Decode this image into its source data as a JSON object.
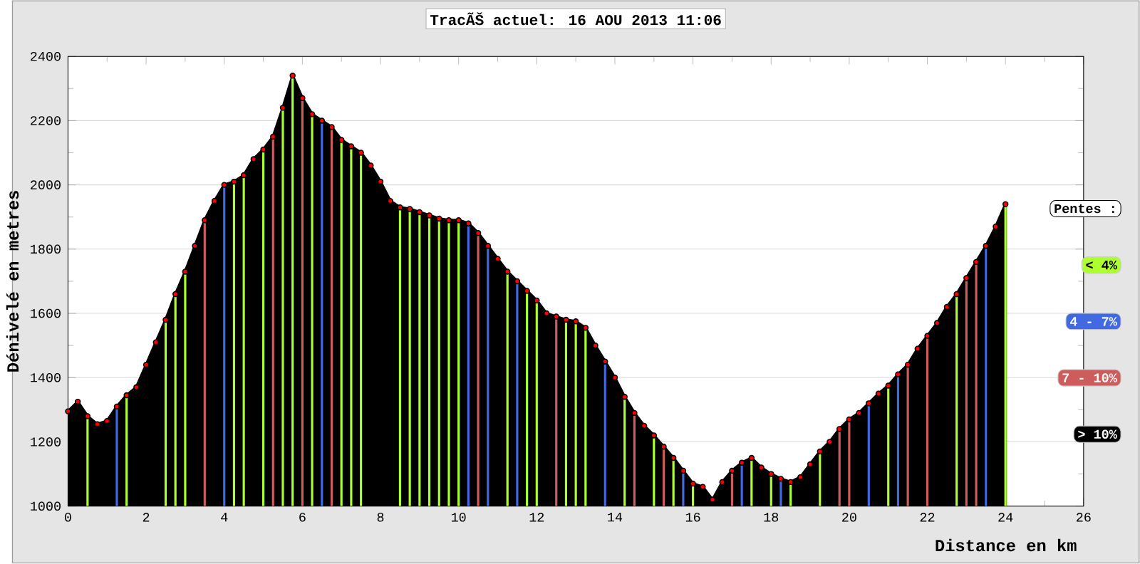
{
  "chart_data": {
    "type": "bar",
    "title": "TracÃŠ actuel: 16 AOU 2013 11:06",
    "xlabel": "Distance en km",
    "ylabel": "Dénivelé en metres",
    "legend_title": "Pentes :",
    "xlim": [
      0,
      26
    ],
    "ylim": [
      1000,
      2400
    ],
    "xticks": [
      0,
      2,
      4,
      6,
      8,
      10,
      12,
      14,
      16,
      18,
      20,
      22,
      24,
      26
    ],
    "yticks": [
      1000,
      1200,
      1400,
      1600,
      1800,
      2000,
      2200,
      2400
    ],
    "grid": "y",
    "legend": "right",
    "marker": "circle",
    "series": [
      {
        "name": "< 4%",
        "color": "#adff2f",
        "x": [
          0.5,
          1.5,
          2.5,
          2.75,
          3.0,
          4.25,
          4.5,
          5.0,
          5.5,
          5.75,
          6.25,
          7.0,
          7.25,
          7.5,
          8.5,
          8.75,
          9.0,
          9.25,
          9.5,
          9.75,
          10.0,
          11.25,
          11.75,
          12.0,
          12.75,
          13.0,
          13.25,
          14.25,
          15.0,
          15.5,
          16.0,
          17.5,
          18.0,
          18.5,
          19.25,
          21.0,
          22.75,
          24.0
        ],
        "values": [
          1280,
          1345,
          1580,
          1660,
          1730,
          2010,
          2030,
          2110,
          2240,
          2340,
          2220,
          2140,
          2120,
          2100,
          1930,
          1925,
          1915,
          1905,
          1895,
          1890,
          1890,
          1730,
          1670,
          1640,
          1580,
          1575,
          1555,
          1340,
          1220,
          1150,
          1070,
          1150,
          1100,
          1075,
          1170,
          1375,
          1660,
          1940
        ]
      },
      {
        "name": "4 - 7%",
        "color": "#4169e1",
        "x": [
          1.25,
          4.0,
          6.5,
          10.25,
          10.75,
          11.5,
          13.75,
          15.75,
          17.25,
          18.25,
          20.5,
          21.25,
          23.5
        ],
        "values": [
          1310,
          2000,
          2200,
          1880,
          1810,
          1700,
          1450,
          1110,
          1135,
          1085,
          1320,
          1410,
          1810
        ]
      },
      {
        "name": "7 - 10%",
        "color": "#cd5c5c",
        "x": [
          3.5,
          5.25,
          6.0,
          6.75,
          10.5,
          12.5,
          14.5,
          15.25,
          17.0,
          19.75,
          20.0,
          21.5,
          22.0,
          23.0,
          23.25
        ],
        "values": [
          1890,
          2150,
          2270,
          2180,
          1850,
          1590,
          1290,
          1185,
          1110,
          1240,
          1270,
          1440,
          1530,
          1710,
          1760
        ]
      },
      {
        "name": "> 10%",
        "type": "area",
        "color": "#000000",
        "x": [
          0,
          0.25,
          0.5,
          0.75,
          1.0,
          1.25,
          1.5,
          1.75,
          2.0,
          2.25,
          2.5,
          2.75,
          3.0,
          3.25,
          3.5,
          3.75,
          4.0,
          4.25,
          4.5,
          4.75,
          5.0,
          5.25,
          5.5,
          5.75,
          6.0,
          6.25,
          6.5,
          6.75,
          7.0,
          7.25,
          7.5,
          7.75,
          8.0,
          8.25,
          8.5,
          8.75,
          9.0,
          9.25,
          9.5,
          9.75,
          10.0,
          10.25,
          10.5,
          10.75,
          11.0,
          11.25,
          11.5,
          11.75,
          12.0,
          12.25,
          12.5,
          12.75,
          13.0,
          13.25,
          13.5,
          13.75,
          14.0,
          14.25,
          14.5,
          14.75,
          15.0,
          15.25,
          15.5,
          15.75,
          16.0,
          16.25,
          16.5,
          16.75,
          17.0,
          17.25,
          17.5,
          17.75,
          18.0,
          18.25,
          18.5,
          18.75,
          19.0,
          19.25,
          19.5,
          19.75,
          20.0,
          20.25,
          20.5,
          20.75,
          21.0,
          21.25,
          21.5,
          21.75,
          22.0,
          22.25,
          22.5,
          22.75,
          23.0,
          23.25,
          23.5,
          23.75,
          24.0
        ],
        "values": [
          1295,
          1325,
          1280,
          1255,
          1265,
          1310,
          1345,
          1370,
          1440,
          1510,
          1580,
          1660,
          1730,
          1810,
          1890,
          1950,
          2000,
          2010,
          2030,
          2080,
          2110,
          2150,
          2240,
          2340,
          2270,
          2220,
          2200,
          2180,
          2140,
          2120,
          2100,
          2060,
          2010,
          1950,
          1930,
          1925,
          1915,
          1905,
          1895,
          1890,
          1890,
          1880,
          1850,
          1810,
          1770,
          1730,
          1700,
          1670,
          1640,
          1600,
          1590,
          1580,
          1575,
          1555,
          1500,
          1450,
          1400,
          1340,
          1290,
          1250,
          1220,
          1185,
          1150,
          1110,
          1070,
          1060,
          1020,
          1075,
          1110,
          1135,
          1150,
          1120,
          1100,
          1085,
          1075,
          1090,
          1130,
          1170,
          1200,
          1240,
          1270,
          1290,
          1320,
          1350,
          1375,
          1410,
          1440,
          1490,
          1530,
          1570,
          1620,
          1660,
          1710,
          1760,
          1810,
          1870,
          1940
        ]
      }
    ]
  }
}
